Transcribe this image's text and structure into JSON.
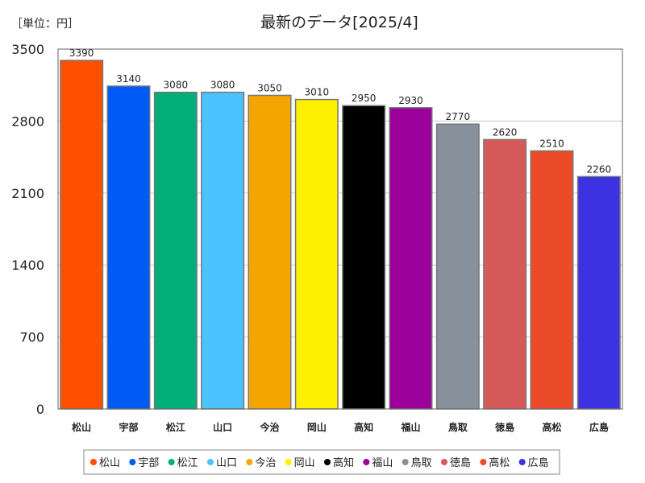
{
  "chart_data": {
    "type": "bar",
    "title": "最新のデータ[2025/4]",
    "unit_label": "［単位：円］",
    "xlabel": "",
    "ylabel": "",
    "ylim": [
      0,
      3500
    ],
    "yticks": [
      0,
      700,
      1400,
      2100,
      2800,
      3500
    ],
    "grid": true,
    "legend_position": "bottom",
    "categories": [
      "松山",
      "宇部",
      "松江",
      "山口",
      "今治",
      "岡山",
      "高知",
      "福山",
      "鳥取",
      "徳島",
      "高松",
      "広島"
    ],
    "values": [
      3390,
      3140,
      3080,
      3080,
      3050,
      3010,
      2950,
      2930,
      2770,
      2620,
      2510,
      2260
    ],
    "colors": [
      "#ff5000",
      "#005af5",
      "#00af78",
      "#4bc3ff",
      "#f5a500",
      "#fff000",
      "#000000",
      "#9b009b",
      "#87919b",
      "#d75a5a",
      "#eb4b28",
      "#3c32e1"
    ]
  }
}
